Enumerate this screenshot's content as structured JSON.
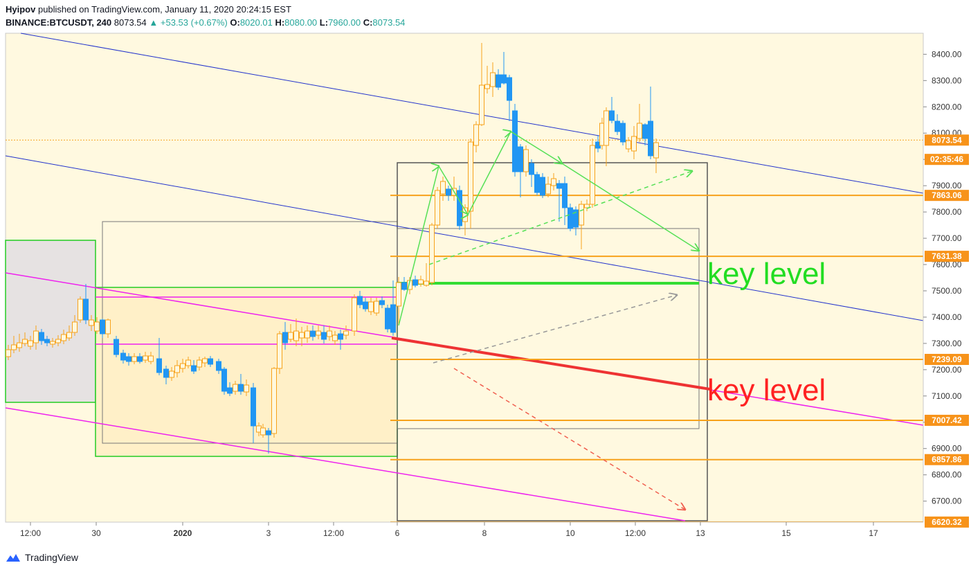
{
  "header": {
    "publisher": "Hyipov",
    "published_text": "published on TradingView.com, January 11, 2020 20:24:15 EST",
    "symbol": "BINANCE:BTCUSDT, 240",
    "last": "8073.54",
    "change": "+53.53 (+0.67%)",
    "o_label": "O:",
    "o_value": "8020.01",
    "h_label": "H:",
    "h_value": "8080.00",
    "l_label": "L:",
    "l_value": "7960.00",
    "c_label": "C:",
    "c_value": "8073.54"
  },
  "footer": {
    "brand": "TradingView"
  },
  "colors": {
    "up": "#f7a21b",
    "down": "#2196f3",
    "bg": "#fffbe6",
    "accent": "#f7931a"
  },
  "chart_data": {
    "type": "candlestick",
    "y_ticks": [
      "6700.00",
      "6800.00",
      "6900.00",
      "7000.00",
      "7100.00",
      "7200.00",
      "7300.00",
      "7400.00",
      "7500.00",
      "7600.00",
      "7700.00",
      "7800.00",
      "7900.00",
      "8000.00",
      "8100.00",
      "8200.00",
      "8300.00",
      "8400.00"
    ],
    "x_ticks": [
      "12:00",
      "30",
      "2020",
      "3",
      "12:00",
      "6",
      "8",
      "10",
      "12:00",
      "13",
      "15",
      "17"
    ],
    "ylim": [
      6620,
      8480
    ],
    "price_labels": [
      {
        "value": 8073.54,
        "text": "8073.54"
      },
      {
        "value": 8000,
        "text": "02:35:46"
      },
      {
        "value": 7863.06,
        "text": "7863.06"
      },
      {
        "value": 7631.38,
        "text": "7631.38"
      },
      {
        "value": 7239.09,
        "text": "7239.09"
      },
      {
        "value": 7007.42,
        "text": "7007.42"
      },
      {
        "value": 6857.86,
        "text": "6857.86"
      },
      {
        "value": 6620.32,
        "text": "6620.32"
      }
    ],
    "annotations": [
      {
        "text": "key level",
        "color": "#22dd22"
      },
      {
        "text": "key level",
        "color": "#ff2222"
      }
    ]
  }
}
